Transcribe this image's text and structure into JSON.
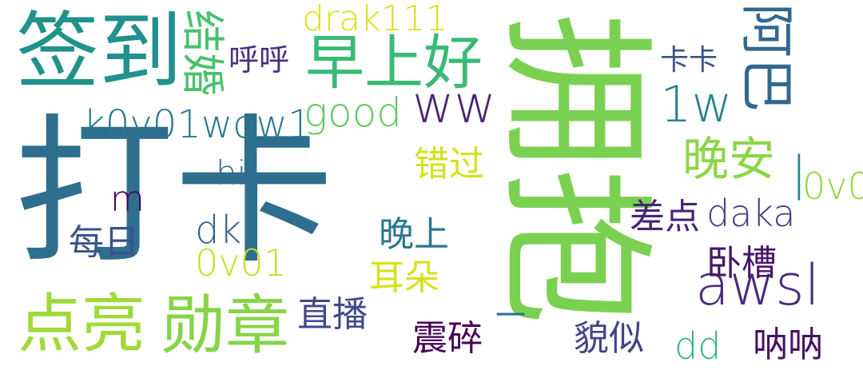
{
  "words": [
    {
      "text": "打卡",
      "color": "#2e6e8e"
    },
    {
      "text": "拥抱",
      "color": "#7ad151"
    },
    {
      "text": "签到",
      "color": "#21918c"
    },
    {
      "text": "早上好",
      "color": "#3aba76"
    },
    {
      "text": "阿巴",
      "color": "#31688e"
    },
    {
      "text": "点亮",
      "color": "#a0da39"
    },
    {
      "text": "勋章",
      "color": "#86d549"
    },
    {
      "text": "awsl",
      "color": "#472d7b"
    },
    {
      "text": "结婚",
      "color": "#4ac16d"
    },
    {
      "text": "drak111",
      "color": "#d8e219"
    },
    {
      "text": "呼呼",
      "color": "#46327e"
    },
    {
      "text": "卡卡",
      "color": "#3b528b"
    },
    {
      "text": "ww",
      "color": "#482878"
    },
    {
      "text": "1w",
      "color": "#26828e"
    },
    {
      "text": "good",
      "color": "#5ec962"
    },
    {
      "text": "k0v01wow1",
      "color": "#2a788e"
    },
    {
      "text": "晚安",
      "color": "#8bd646"
    },
    {
      "text": "错过",
      "color": "#d2e21b"
    },
    {
      "text": "0v0",
      "color": "#90d743"
    },
    {
      "text": "|",
      "color": "#26828e"
    },
    {
      "text": "hi",
      "color": "#2c728e"
    },
    {
      "text": "m",
      "color": "#440154"
    },
    {
      "text": "daka",
      "color": "#433e85"
    },
    {
      "text": "差点",
      "color": "#482475"
    },
    {
      "text": "dk",
      "color": "#33638d"
    },
    {
      "text": "每日",
      "color": "#3b528b"
    },
    {
      "text": "晚上",
      "color": "#2a788e"
    },
    {
      "text": "0v01",
      "color": "#c2df23"
    },
    {
      "text": "卧槽",
      "color": "#481467"
    },
    {
      "text": "耳朵",
      "color": "#d8e219"
    },
    {
      "text": "直播",
      "color": "#3e4a89"
    },
    {
      "text": "一",
      "color": "#2c728e"
    },
    {
      "text": "震碎",
      "color": "#440154"
    },
    {
      "text": "貌似",
      "color": "#414487"
    },
    {
      "text": "dd",
      "color": "#35b779"
    },
    {
      "text": "呐呐",
      "color": "#471164"
    }
  ]
}
